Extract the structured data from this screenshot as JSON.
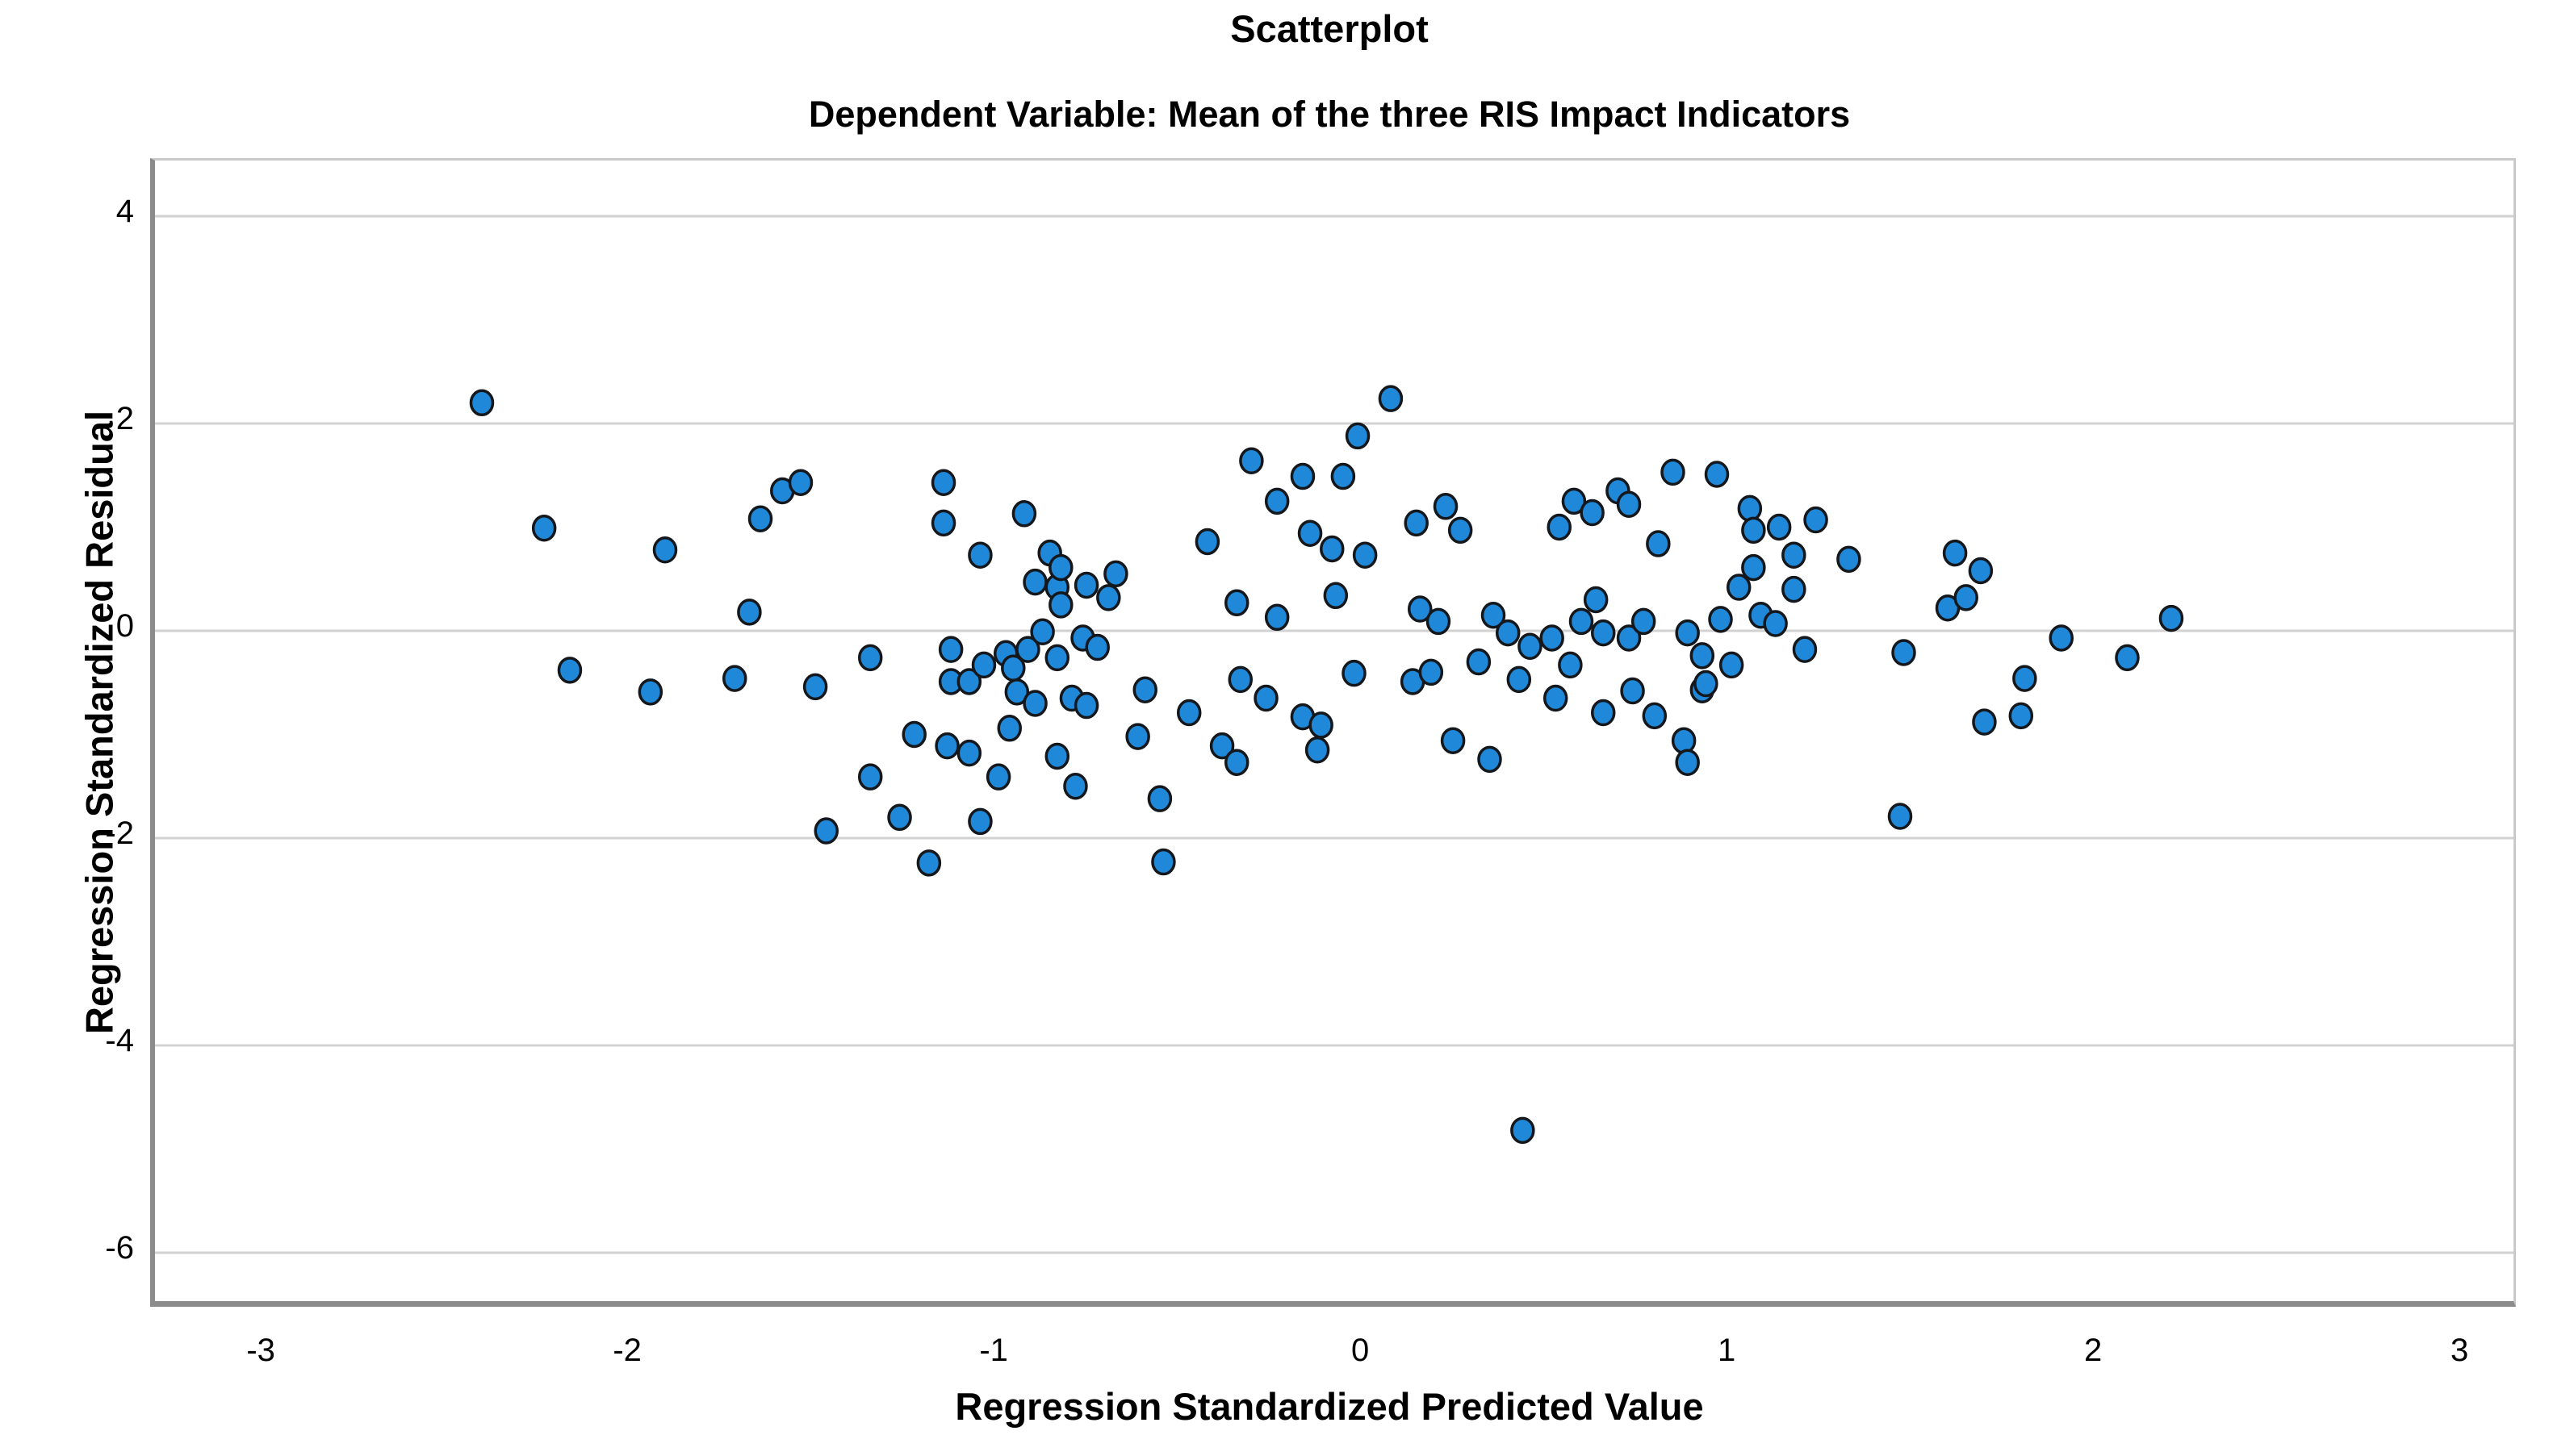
{
  "header": {
    "title": "Scatterplot",
    "subtitle": "Dependent Variable: Mean of the three RIS Impact Indicators"
  },
  "colors": {
    "point_fill": "#1f88d8",
    "point_stroke": "#14181c",
    "gridline": "#d2d2d2",
    "axis_frame_dark": "#8b8b8b",
    "axis_frame_light": "#c9c9c9",
    "background": "#ffffff",
    "text": "#000000"
  },
  "chart_data": {
    "type": "scatter",
    "title": "Scatterplot",
    "subtitle": "Dependent Variable: Mean of the three RIS Impact Indicators",
    "xlabel": "Regression Standardized Predicted Value",
    "ylabel": "Regression Standardized Residual",
    "x_ticks": [
      -3,
      -2,
      -1,
      0,
      1,
      2,
      3
    ],
    "y_ticks": [
      4,
      2,
      0,
      -2,
      -4,
      -6
    ],
    "xlim": [
      -3.302,
      3.134
    ],
    "ylim": [
      -6.467,
      4.537
    ],
    "grid": "horizontal-only",
    "legend": "none",
    "marker": {
      "shape": "circle",
      "rx": 13.5,
      "ry": 15
    },
    "points": [
      [
        -2.41,
        2.2
      ],
      [
        -2.24,
        0.99
      ],
      [
        -2.17,
        -0.38
      ],
      [
        -1.95,
        -0.59
      ],
      [
        -1.91,
        0.78
      ],
      [
        -1.72,
        -0.46
      ],
      [
        -1.68,
        0.18
      ],
      [
        -1.65,
        1.08
      ],
      [
        -1.59,
        1.35
      ],
      [
        -1.54,
        1.43
      ],
      [
        -1.5,
        -0.54
      ],
      [
        -1.47,
        -1.93
      ],
      [
        -1.35,
        -0.26
      ],
      [
        -1.35,
        -1.41
      ],
      [
        -1.27,
        -1.8
      ],
      [
        -1.23,
        -1.0
      ],
      [
        -1.19,
        -2.24
      ],
      [
        -1.15,
        1.43
      ],
      [
        -1.15,
        1.04
      ],
      [
        -1.14,
        -1.11
      ],
      [
        -1.13,
        -0.18
      ],
      [
        -1.13,
        -0.49
      ],
      [
        -1.08,
        -0.49
      ],
      [
        -1.08,
        -1.18
      ],
      [
        -1.05,
        0.73
      ],
      [
        -1.05,
        -1.84
      ],
      [
        -1.04,
        -0.33
      ],
      [
        -1.0,
        -1.41
      ],
      [
        -0.98,
        -0.22
      ],
      [
        -0.97,
        -0.94
      ],
      [
        -0.96,
        -0.36
      ],
      [
        -0.95,
        -0.59
      ],
      [
        -0.93,
        1.13
      ],
      [
        -0.92,
        -0.18
      ],
      [
        -0.9,
        0.47
      ],
      [
        -0.9,
        -0.7
      ],
      [
        -0.88,
        -0.01
      ],
      [
        -0.86,
        0.75
      ],
      [
        -0.84,
        0.42
      ],
      [
        -0.84,
        -0.26
      ],
      [
        -0.84,
        -1.21
      ],
      [
        -0.83,
        0.61
      ],
      [
        -0.83,
        0.25
      ],
      [
        -0.8,
        -0.65
      ],
      [
        -0.79,
        -1.5
      ],
      [
        -0.77,
        -0.07
      ],
      [
        -0.76,
        0.44
      ],
      [
        -0.76,
        -0.72
      ],
      [
        -0.73,
        -0.16
      ],
      [
        -0.7,
        0.32
      ],
      [
        -0.68,
        0.55
      ],
      [
        -0.62,
        -1.02
      ],
      [
        -0.6,
        -0.57
      ],
      [
        -0.56,
        -1.62
      ],
      [
        -0.55,
        -2.23
      ],
      [
        -0.48,
        -0.79
      ],
      [
        -0.43,
        0.86
      ],
      [
        -0.39,
        -1.11
      ],
      [
        -0.35,
        -1.27
      ],
      [
        -0.35,
        0.27
      ],
      [
        -0.34,
        -0.47
      ],
      [
        -0.31,
        1.64
      ],
      [
        -0.27,
        -0.65
      ],
      [
        -0.24,
        0.13
      ],
      [
        -0.24,
        1.25
      ],
      [
        -0.17,
        1.49
      ],
      [
        -0.17,
        -0.83
      ],
      [
        -0.15,
        0.94
      ],
      [
        -0.13,
        -1.15
      ],
      [
        -0.12,
        -0.91
      ],
      [
        -0.09,
        0.79
      ],
      [
        -0.08,
        0.34
      ],
      [
        -0.06,
        1.49
      ],
      [
        -0.03,
        -0.41
      ],
      [
        -0.02,
        1.88
      ],
      [
        0.0,
        0.73
      ],
      [
        0.07,
        2.24
      ],
      [
        0.13,
        -0.49
      ],
      [
        0.14,
        1.04
      ],
      [
        0.15,
        0.21
      ],
      [
        0.18,
        -0.4
      ],
      [
        0.2,
        0.09
      ],
      [
        0.22,
        1.2
      ],
      [
        0.24,
        -1.06
      ],
      [
        0.26,
        0.97
      ],
      [
        0.31,
        -0.3
      ],
      [
        0.34,
        -1.24
      ],
      [
        0.35,
        0.15
      ],
      [
        0.39,
        -0.02
      ],
      [
        0.42,
        -0.47
      ],
      [
        0.43,
        -4.82
      ],
      [
        0.45,
        -0.15
      ],
      [
        0.51,
        -0.07
      ],
      [
        0.52,
        -0.65
      ],
      [
        0.53,
        1.0
      ],
      [
        0.56,
        -0.33
      ],
      [
        0.57,
        1.25
      ],
      [
        0.59,
        0.09
      ],
      [
        0.62,
        1.14
      ],
      [
        0.63,
        0.3
      ],
      [
        0.65,
        -0.02
      ],
      [
        0.65,
        -0.79
      ],
      [
        0.69,
        1.35
      ],
      [
        0.72,
        1.22
      ],
      [
        0.72,
        -0.07
      ],
      [
        0.73,
        -0.58
      ],
      [
        0.76,
        0.09
      ],
      [
        0.79,
        -0.82
      ],
      [
        0.8,
        0.84
      ],
      [
        0.84,
        1.53
      ],
      [
        0.87,
        -1.06
      ],
      [
        0.88,
        -0.02
      ],
      [
        0.88,
        -1.27
      ],
      [
        0.92,
        -0.24
      ],
      [
        0.92,
        -0.57
      ],
      [
        0.93,
        -0.51
      ],
      [
        0.96,
        1.51
      ],
      [
        0.97,
        0.11
      ],
      [
        1.0,
        -0.33
      ],
      [
        1.02,
        0.42
      ],
      [
        1.05,
        1.18
      ],
      [
        1.06,
        0.97
      ],
      [
        1.06,
        0.61
      ],
      [
        1.08,
        0.15
      ],
      [
        1.12,
        0.07
      ],
      [
        1.13,
        1.0
      ],
      [
        1.17,
        0.73
      ],
      [
        1.17,
        0.4
      ],
      [
        1.2,
        -0.18
      ],
      [
        1.23,
        1.07
      ],
      [
        1.32,
        0.69
      ],
      [
        1.46,
        -1.79
      ],
      [
        1.47,
        -0.21
      ],
      [
        1.59,
        0.22
      ],
      [
        1.61,
        0.75
      ],
      [
        1.64,
        0.32
      ],
      [
        1.68,
        0.58
      ],
      [
        1.69,
        -0.88
      ],
      [
        1.79,
        -0.82
      ],
      [
        1.8,
        -0.46
      ],
      [
        1.9,
        -0.07
      ],
      [
        2.08,
        -0.26
      ],
      [
        2.2,
        0.12
      ]
    ]
  }
}
